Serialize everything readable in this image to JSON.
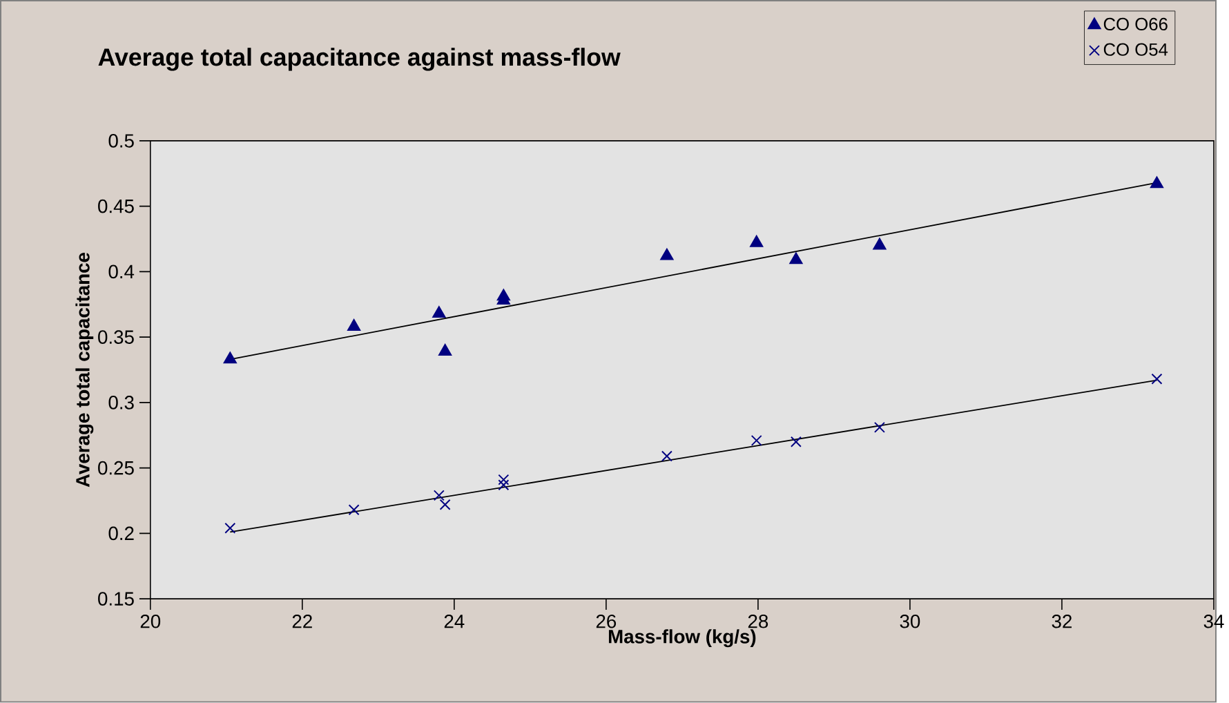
{
  "chart_data": {
    "type": "scatter",
    "title": "Average total capacitance against mass-flow",
    "xlabel": "Mass-flow (kg/s)",
    "ylabel": "Average total capacitance",
    "xlim": [
      20,
      34
    ],
    "xticks": [
      20,
      22,
      24,
      26,
      28,
      30,
      32,
      34
    ],
    "ylim": [
      0.15,
      0.5
    ],
    "yticks": [
      0.15,
      0.2,
      0.25,
      0.3,
      0.35,
      0.4,
      0.45,
      0.5
    ],
    "legend": "top right",
    "grid": false,
    "series": [
      {
        "name": "CO O66",
        "color": "#000080",
        "marker": "triangle",
        "x": [
          21.05,
          22.68,
          23.8,
          23.88,
          24.65,
          24.65,
          26.8,
          27.98,
          28.5,
          29.6,
          33.25
        ],
        "values": [
          0.333,
          0.358,
          0.368,
          0.339,
          0.378,
          0.381,
          0.412,
          0.422,
          0.409,
          0.42,
          0.467
        ]
      },
      {
        "name": "CO O54",
        "color": "#000080",
        "marker": "cross",
        "x": [
          21.05,
          22.68,
          23.8,
          23.88,
          24.65,
          24.65,
          26.8,
          27.98,
          28.5,
          29.6,
          33.25
        ],
        "values": [
          0.204,
          0.218,
          0.229,
          0.222,
          0.237,
          0.241,
          0.259,
          0.271,
          0.27,
          0.281,
          0.318
        ]
      },
      {
        "type": "line",
        "color": "#000000",
        "x": [
          21.05,
          33.25
        ],
        "values": [
          0.333,
          0.468
        ]
      },
      {
        "type": "line",
        "color": "#000000",
        "x": [
          21.05,
          33.25
        ],
        "values": [
          0.201,
          0.317
        ]
      }
    ]
  }
}
